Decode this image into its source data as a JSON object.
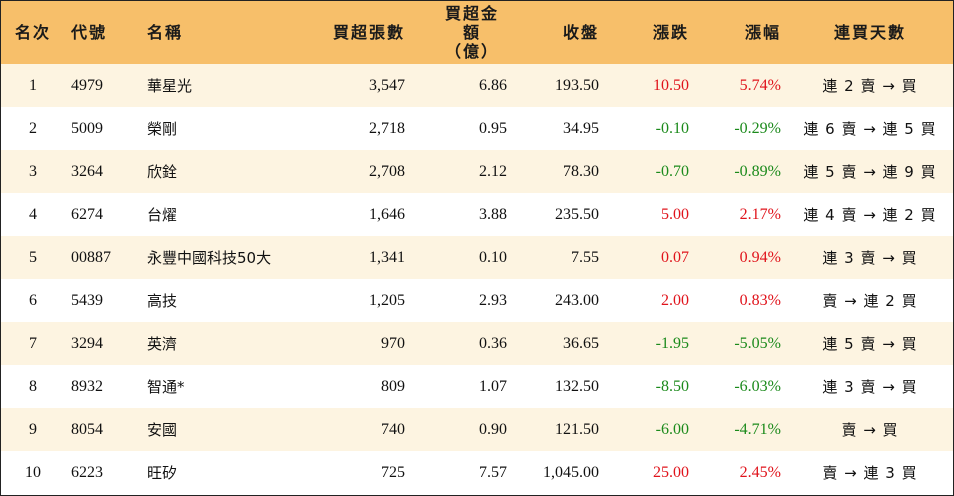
{
  "headers": {
    "rank": "名次",
    "code": "代號",
    "name": "名稱",
    "lots": "買超張數",
    "amount_line1": "買超金額",
    "amount_line2": "（億）",
    "close": "收盤",
    "change": "漲跌",
    "pct": "漲幅",
    "streak": "連買天數"
  },
  "colors": {
    "header_bg": "#f7bf6a",
    "stripe_bg": "#fdf4e1",
    "up": "#e0131b",
    "down": "#1b8a1b"
  },
  "rows": [
    {
      "rank": "1",
      "code": "4979",
      "name": "華星光",
      "lots": "3,547",
      "amount": "6.86",
      "close": "193.50",
      "change": "10.50",
      "pct": "5.74%",
      "direction": "up",
      "streak": "連 2 賣 → 買"
    },
    {
      "rank": "2",
      "code": "5009",
      "name": "榮剛",
      "lots": "2,718",
      "amount": "0.95",
      "close": "34.95",
      "change": "-0.10",
      "pct": "-0.29%",
      "direction": "down",
      "streak": "連 6 賣 → 連 5 買"
    },
    {
      "rank": "3",
      "code": "3264",
      "name": "欣銓",
      "lots": "2,708",
      "amount": "2.12",
      "close": "78.30",
      "change": "-0.70",
      "pct": "-0.89%",
      "direction": "down",
      "streak": "連 5 賣 → 連 9 買"
    },
    {
      "rank": "4",
      "code": "6274",
      "name": "台燿",
      "lots": "1,646",
      "amount": "3.88",
      "close": "235.50",
      "change": "5.00",
      "pct": "2.17%",
      "direction": "up",
      "streak": "連 4 賣 → 連 2 買"
    },
    {
      "rank": "5",
      "code": "00887",
      "name": "永豐中國科技50大",
      "lots": "1,341",
      "amount": "0.10",
      "close": "7.55",
      "change": "0.07",
      "pct": "0.94%",
      "direction": "up",
      "streak": "連 3 賣 → 買"
    },
    {
      "rank": "6",
      "code": "5439",
      "name": "高技",
      "lots": "1,205",
      "amount": "2.93",
      "close": "243.00",
      "change": "2.00",
      "pct": "0.83%",
      "direction": "up",
      "streak": "賣 → 連 2 買"
    },
    {
      "rank": "7",
      "code": "3294",
      "name": "英濟",
      "lots": "970",
      "amount": "0.36",
      "close": "36.65",
      "change": "-1.95",
      "pct": "-5.05%",
      "direction": "down",
      "streak": "連 5 賣 → 買"
    },
    {
      "rank": "8",
      "code": "8932",
      "name": "智通*",
      "lots": "809",
      "amount": "1.07",
      "close": "132.50",
      "change": "-8.50",
      "pct": "-6.03%",
      "direction": "down",
      "streak": "連 3 賣 → 買"
    },
    {
      "rank": "9",
      "code": "8054",
      "name": "安國",
      "lots": "740",
      "amount": "0.90",
      "close": "121.50",
      "change": "-6.00",
      "pct": "-4.71%",
      "direction": "down",
      "streak": "賣 → 買"
    },
    {
      "rank": "10",
      "code": "6223",
      "name": "旺矽",
      "lots": "725",
      "amount": "7.57",
      "close": "1,045.00",
      "change": "25.00",
      "pct": "2.45%",
      "direction": "up",
      "streak": "賣 → 連 3 買"
    }
  ]
}
